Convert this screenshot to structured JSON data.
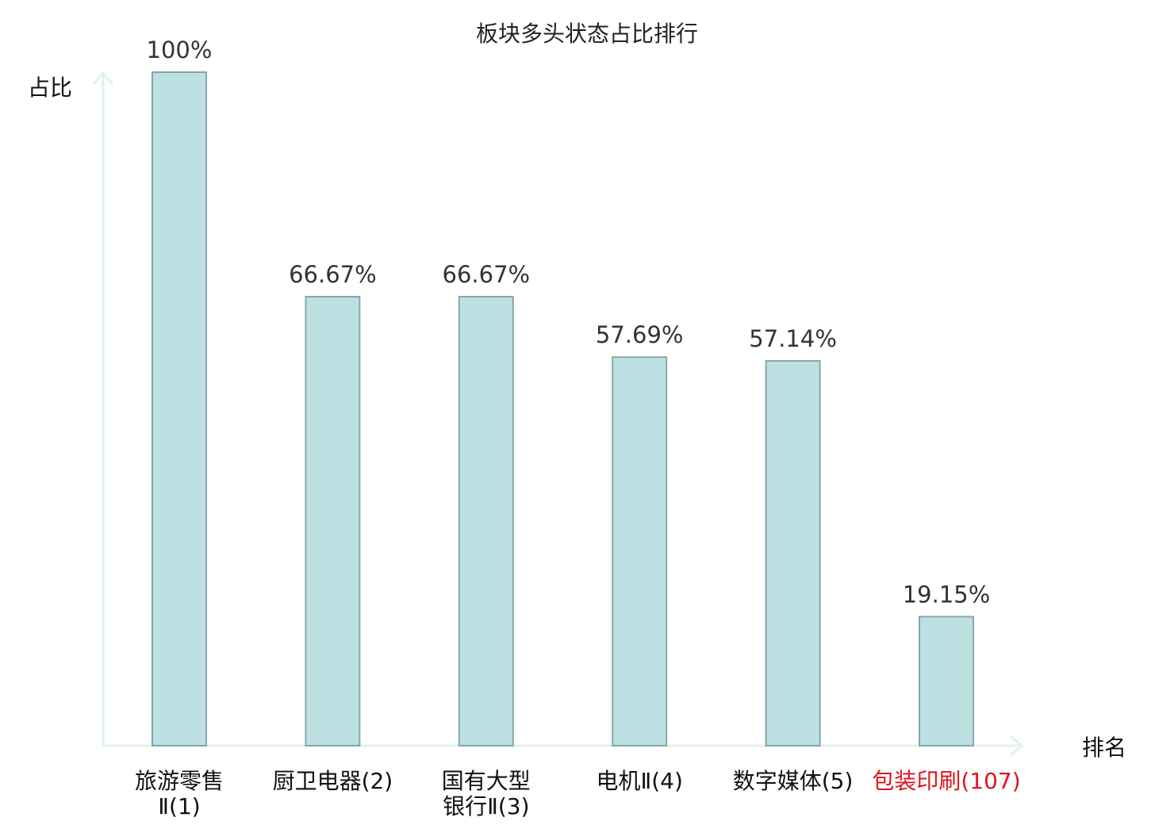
{
  "chart_data": {
    "type": "bar",
    "title": "板块多头状态占比排行",
    "ylabel": "占比",
    "xlabel": "排名",
    "ylim": [
      0,
      100
    ],
    "grid": false,
    "value_unit": "%",
    "categories": [
      {
        "name": "旅游零售",
        "suffix": "Ⅱ",
        "rank": "(1)",
        "lines": [
          "旅游零售",
          "Ⅱ(1)"
        ],
        "highlight": false
      },
      {
        "name": "厨卫电器",
        "suffix": "",
        "rank": "(2)",
        "lines": [
          "厨卫电器(2)"
        ],
        "highlight": false
      },
      {
        "name": "国有大型银行",
        "suffix": "Ⅱ",
        "rank": "(3)",
        "lines": [
          "国有大型",
          "银行Ⅱ(3)"
        ],
        "highlight": false
      },
      {
        "name": "电机",
        "suffix": "Ⅱ",
        "rank": "(4)",
        "lines": [
          "电机Ⅱ(4)"
        ],
        "highlight": false
      },
      {
        "name": "数字媒体",
        "suffix": "",
        "rank": "(5)",
        "lines": [
          "数字媒体(5)"
        ],
        "highlight": false
      },
      {
        "name": "包装印刷",
        "suffix": "",
        "rank": "(107)",
        "lines": [
          "包装印刷(107)"
        ],
        "highlight": true
      }
    ],
    "values": [
      100,
      66.67,
      66.67,
      57.69,
      57.14,
      19.15
    ],
    "value_labels": [
      "100%",
      "66.67%",
      "66.67%",
      "57.69%",
      "57.14%",
      "19.15%"
    ],
    "colors": {
      "bar_fill": "#bde0e3",
      "bar_stroke": "#86a7a9",
      "axis": "#e0f2ef",
      "highlight_text": "#e0141e",
      "normal_text": "#111111"
    }
  }
}
